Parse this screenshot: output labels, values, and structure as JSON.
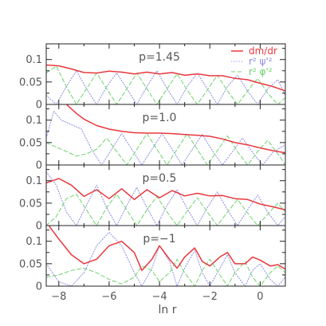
{
  "chart_data": {
    "type": "line",
    "xlabel": "ln r",
    "xlim": [
      -8.5,
      1.0
    ],
    "x_ticks": [
      -8,
      -6,
      -4,
      -2,
      0
    ],
    "x_tick_labels": [
      "−8",
      "−6",
      "−4",
      "−2",
      "0"
    ],
    "ylim": [
      0,
      0.135
    ],
    "y_ticks": [
      0,
      0.05,
      0.1
    ],
    "y_tick_labels": [
      "0",
      "0.05",
      "0.1"
    ],
    "grid": false,
    "legend_placement": "top-right",
    "legend": [
      {
        "label": "dm/dr",
        "color": "#e8383d",
        "style": "solid"
      },
      {
        "label": "r² ψ'²",
        "color": "#8c8ce6",
        "style": "dotted"
      },
      {
        "label": "r² φ'²",
        "color": "#6dd36d",
        "style": "dashed"
      }
    ],
    "panels": [
      {
        "label": "p=1.45",
        "series": [
          {
            "name": "dm/dr",
            "x": [
              -8.5,
              -8,
              -7.5,
              -7,
              -6.5,
              -6,
              -5.5,
              -5,
              -4.5,
              -4,
              -3.5,
              -3,
              -2.5,
              -2,
              -1.5,
              -1,
              -0.5,
              0,
              0.5,
              1
            ],
            "y": [
              0.088,
              0.086,
              0.079,
              0.071,
              0.07,
              0.074,
              0.072,
              0.068,
              0.072,
              0.068,
              0.071,
              0.065,
              0.068,
              0.064,
              0.064,
              0.058,
              0.055,
              0.047,
              0.04,
              0.03
            ]
          },
          {
            "name": "r² ψ'²",
            "x": [
              -8.5,
              -8.1,
              -7.7,
              -7.3,
              -6.9,
              -6.5,
              -6.1,
              -5.7,
              -5.3,
              -4.9,
              -4.5,
              -4.1,
              -3.7,
              -3.3,
              -2.9,
              -2.5,
              -2.1,
              -1.7,
              -1.3,
              -0.9,
              -0.5,
              -0.1,
              0.3,
              0.7,
              1.0
            ],
            "y": [
              0.02,
              0.0,
              0.04,
              0.075,
              0.035,
              0.0,
              0.04,
              0.07,
              0.035,
              0.0,
              0.04,
              0.075,
              0.035,
              0.0,
              0.04,
              0.07,
              0.035,
              0.0,
              0.04,
              0.065,
              0.03,
              0.0,
              0.035,
              0.055,
              0.02
            ]
          },
          {
            "name": "r² φ'²",
            "x": [
              -8.5,
              -8.1,
              -7.7,
              -7.3,
              -6.9,
              -6.5,
              -6.1,
              -5.7,
              -5.3,
              -4.9,
              -4.5,
              -4.1,
              -3.7,
              -3.3,
              -2.9,
              -2.5,
              -2.1,
              -1.7,
              -1.3,
              -0.9,
              -0.5,
              -0.1,
              0.3,
              0.7,
              1.0
            ],
            "y": [
              0.07,
              0.085,
              0.04,
              0.0,
              0.035,
              0.07,
              0.035,
              0.0,
              0.035,
              0.07,
              0.035,
              0.0,
              0.035,
              0.068,
              0.032,
              0.0,
              0.032,
              0.065,
              0.03,
              0.0,
              0.03,
              0.058,
              0.025,
              0.0,
              0.015
            ]
          }
        ]
      },
      {
        "label": "p=1.0",
        "series": [
          {
            "name": "dm/dr",
            "x": [
              -7.7,
              -7.3,
              -7,
              -6.5,
              -6,
              -5.5,
              -5,
              -4.5,
              -4,
              -3.5,
              -3,
              -2.5,
              -2,
              -1.5,
              -1,
              -0.5,
              0,
              0.5,
              1
            ],
            "y": [
              0.135,
              0.115,
              0.102,
              0.088,
              0.08,
              0.075,
              0.072,
              0.071,
              0.071,
              0.07,
              0.068,
              0.066,
              0.064,
              0.058,
              0.05,
              0.045,
              0.038,
              0.032,
              0.027
            ]
          },
          {
            "name": "r² ψ'²",
            "x": [
              -8.5,
              -8.2,
              -7.9,
              -7.5,
              -7.1,
              -6.7,
              -6.3,
              -5.9,
              -5.5,
              -5.1,
              -4.7,
              -4.3,
              -3.9,
              -3.5,
              -3.1,
              -2.7,
              -2.3,
              -1.9,
              -1.5,
              -1.1,
              -0.7,
              -0.3,
              0.1,
              0.5,
              1.0
            ],
            "y": [
              0.06,
              0.12,
              0.1,
              0.09,
              0.08,
              0.035,
              0.0,
              0.035,
              0.07,
              0.035,
              0.0,
              0.035,
              0.07,
              0.035,
              0.0,
              0.035,
              0.068,
              0.032,
              0.0,
              0.03,
              0.06,
              0.028,
              0.0,
              0.028,
              0.045
            ]
          },
          {
            "name": "r² φ'²",
            "x": [
              -8.5,
              -8.1,
              -7.7,
              -7.3,
              -6.9,
              -6.5,
              -6.1,
              -5.7,
              -5.3,
              -4.9,
              -4.5,
              -4.1,
              -3.7,
              -3.3,
              -2.9,
              -2.5,
              -2.1,
              -1.7,
              -1.3,
              -0.9,
              -0.5,
              -0.1,
              0.3,
              0.7,
              1.0
            ],
            "y": [
              0.05,
              0.04,
              0.03,
              0.02,
              0.025,
              0.035,
              0.06,
              0.03,
              0.0,
              0.035,
              0.07,
              0.035,
              0.0,
              0.035,
              0.07,
              0.035,
              0.0,
              0.032,
              0.065,
              0.03,
              0.0,
              0.03,
              0.055,
              0.025,
              0.0
            ]
          }
        ]
      },
      {
        "label": "p=0.5",
        "series": [
          {
            "name": "dm/dr",
            "x": [
              -8.5,
              -8,
              -7.5,
              -7,
              -6.5,
              -6,
              -5.5,
              -5,
              -4.5,
              -4,
              -3.5,
              -3,
              -2.5,
              -2,
              -1.5,
              -1,
              -0.5,
              0,
              0.5,
              1
            ],
            "y": [
              0.095,
              0.105,
              0.09,
              0.065,
              0.08,
              0.06,
              0.082,
              0.058,
              0.08,
              0.062,
              0.078,
              0.066,
              0.072,
              0.066,
              0.067,
              0.06,
              0.058,
              0.048,
              0.042,
              0.035
            ]
          },
          {
            "name": "r² ψ'²",
            "x": [
              -8.5,
              -8.1,
              -7.7,
              -7.3,
              -6.9,
              -6.5,
              -6.1,
              -5.7,
              -5.3,
              -4.9,
              -4.5,
              -4.1,
              -3.7,
              -3.3,
              -2.9,
              -2.5,
              -2.1,
              -1.7,
              -1.3,
              -0.9,
              -0.5,
              -0.1,
              0.3,
              0.7,
              1.0
            ],
            "y": [
              0.12,
              0.09,
              0.03,
              0.0,
              0.045,
              0.09,
              0.04,
              0.0,
              0.045,
              0.085,
              0.04,
              0.0,
              0.045,
              0.08,
              0.038,
              0.0,
              0.04,
              0.075,
              0.035,
              0.0,
              0.035,
              0.068,
              0.03,
              0.0,
              0.02
            ]
          },
          {
            "name": "r² φ'²",
            "x": [
              -8.5,
              -8.1,
              -7.7,
              -7.3,
              -6.9,
              -6.5,
              -6.1,
              -5.7,
              -5.3,
              -4.9,
              -4.5,
              -4.1,
              -3.7,
              -3.3,
              -2.9,
              -2.5,
              -2.1,
              -1.7,
              -1.3,
              -0.9,
              -0.5,
              -0.1,
              0.3,
              0.7,
              1.0
            ],
            "y": [
              0.0,
              0.02,
              0.06,
              0.07,
              0.035,
              0.0,
              0.04,
              0.07,
              0.035,
              0.0,
              0.035,
              0.065,
              0.03,
              0.0,
              0.032,
              0.062,
              0.03,
              0.0,
              0.03,
              0.058,
              0.028,
              0.0,
              0.025,
              0.05,
              0.03
            ]
          }
        ]
      },
      {
        "label": "p=−1",
        "series": [
          {
            "name": "dm/dr",
            "x": [
              -8.4,
              -8,
              -7.5,
              -7,
              -6.5,
              -6,
              -5.5,
              -5,
              -4.7,
              -4.3,
              -4,
              -3.6,
              -3.3,
              -3,
              -2.6,
              -2.3,
              -2,
              -1.6,
              -1.3,
              -1,
              -0.6,
              -0.3,
              0,
              0.4,
              0.7,
              1.0
            ],
            "y": [
              0.135,
              0.105,
              0.07,
              0.05,
              0.06,
              0.09,
              0.1,
              0.075,
              0.035,
              0.06,
              0.09,
              0.06,
              0.04,
              0.065,
              0.085,
              0.055,
              0.045,
              0.065,
              0.075,
              0.05,
              0.05,
              0.065,
              0.058,
              0.045,
              0.048,
              0.038
            ]
          },
          {
            "name": "r² ψ'²",
            "x": [
              -8.5,
              -8,
              -7.5,
              -7,
              -6.5,
              -6,
              -5.5,
              -5,
              -4.7,
              -4.3,
              -4,
              -3.6,
              -3.3,
              -3,
              -2.6,
              -2.3,
              -2,
              -1.6,
              -1.3,
              -1,
              -0.6,
              -0.3,
              0,
              0.4,
              0.7,
              1.0
            ],
            "y": [
              0.05,
              0.01,
              0.0,
              0.03,
              0.09,
              0.12,
              0.09,
              0.03,
              0.0,
              0.04,
              0.09,
              0.055,
              0.0,
              0.04,
              0.08,
              0.03,
              0.0,
              0.04,
              0.07,
              0.03,
              0.0,
              0.035,
              0.05,
              0.015,
              0.0,
              0.02
            ]
          },
          {
            "name": "r² φ'²",
            "x": [
              -8.5,
              -8,
              -7.5,
              -7,
              -6.5,
              -6,
              -5.5,
              -5,
              -4.7,
              -4.3,
              -4,
              -3.6,
              -3.3,
              -3,
              -2.6,
              -2.3,
              -2,
              -1.6,
              -1.3,
              -1,
              -0.6,
              -0.3,
              0,
              0.4,
              0.7,
              1.0
            ],
            "y": [
              0.02,
              0.025,
              0.035,
              0.04,
              0.03,
              0.015,
              0.005,
              0.02,
              0.045,
              0.035,
              0.01,
              0.03,
              0.06,
              0.03,
              0.0,
              0.035,
              0.06,
              0.025,
              0.0,
              0.03,
              0.055,
              0.02,
              0.0,
              0.03,
              0.045,
              0.03
            ]
          }
        ]
      }
    ]
  }
}
